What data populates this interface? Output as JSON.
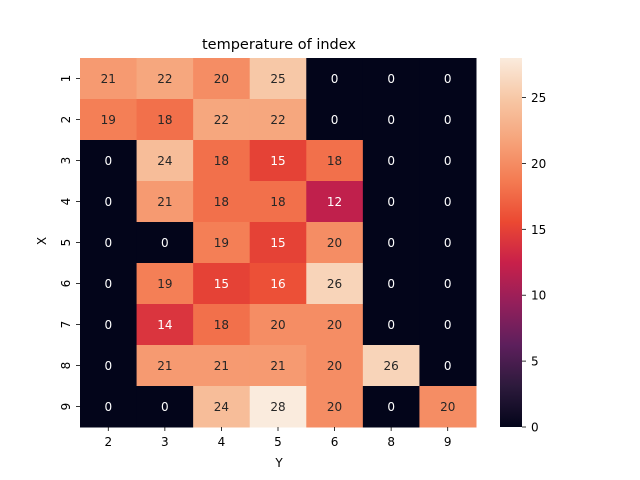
{
  "chart_data": {
    "type": "heatmap",
    "title": "temperature of index",
    "xlabel": "Y",
    "ylabel": "X",
    "x_categories": [
      "2",
      "3",
      "4",
      "5",
      "6",
      "8",
      "9"
    ],
    "y_categories": [
      "1",
      "2",
      "3",
      "4",
      "5",
      "6",
      "7",
      "8",
      "9"
    ],
    "values": [
      [
        21,
        22,
        20,
        25,
        0,
        0,
        0
      ],
      [
        19,
        18,
        22,
        22,
        0,
        0,
        0
      ],
      [
        0,
        24,
        18,
        15,
        18,
        0,
        0
      ],
      [
        0,
        21,
        18,
        18,
        12,
        0,
        0
      ],
      [
        0,
        0,
        19,
        15,
        20,
        0,
        0
      ],
      [
        0,
        19,
        15,
        16,
        26,
        0,
        0
      ],
      [
        0,
        14,
        18,
        20,
        20,
        0,
        0
      ],
      [
        0,
        21,
        21,
        21,
        20,
        26,
        0
      ],
      [
        0,
        0,
        24,
        28,
        20,
        0,
        20
      ]
    ],
    "colorbar": {
      "min": 0,
      "max": 28,
      "ticks": [
        "0",
        "5",
        "10",
        "15",
        "20",
        "25"
      ],
      "colormap": "rocket",
      "color_stops": [
        "#03051a",
        "#2d1a3c",
        "#5d1f5c",
        "#931f5b",
        "#c8204a",
        "#eb4932",
        "#f47b52",
        "#f6a47b",
        "#f7c7a5",
        "#faebdd"
      ]
    },
    "grid": false,
    "legend": "none"
  }
}
